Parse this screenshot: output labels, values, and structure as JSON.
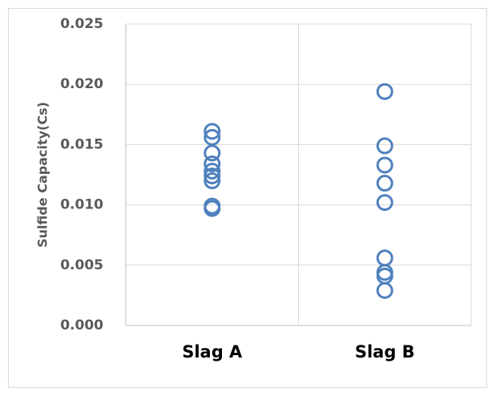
{
  "chart_data": {
    "type": "scatter",
    "title": "",
    "xlabel": "",
    "ylabel": "Sulfide Capacity(Cs)",
    "categories": [
      "Slag A",
      "Slag B"
    ],
    "ylim": [
      0.0,
      0.025
    ],
    "yticks": [
      "0.000",
      "0.005",
      "0.010",
      "0.015",
      "0.020",
      "0.025"
    ],
    "grid": true,
    "legend": "none",
    "marker": "hollow-circle",
    "marker_color": "#4f81bd",
    "series": [
      {
        "category": "Slag A",
        "values": [
          0.0161,
          0.0156,
          0.0143,
          0.0134,
          0.0128,
          0.0124,
          0.012,
          0.0099,
          0.0097
        ]
      },
      {
        "category": "Slag B",
        "values": [
          0.0194,
          0.0149,
          0.0133,
          0.0118,
          0.0102,
          0.0056,
          0.0044,
          0.0041,
          0.0029
        ]
      }
    ]
  }
}
